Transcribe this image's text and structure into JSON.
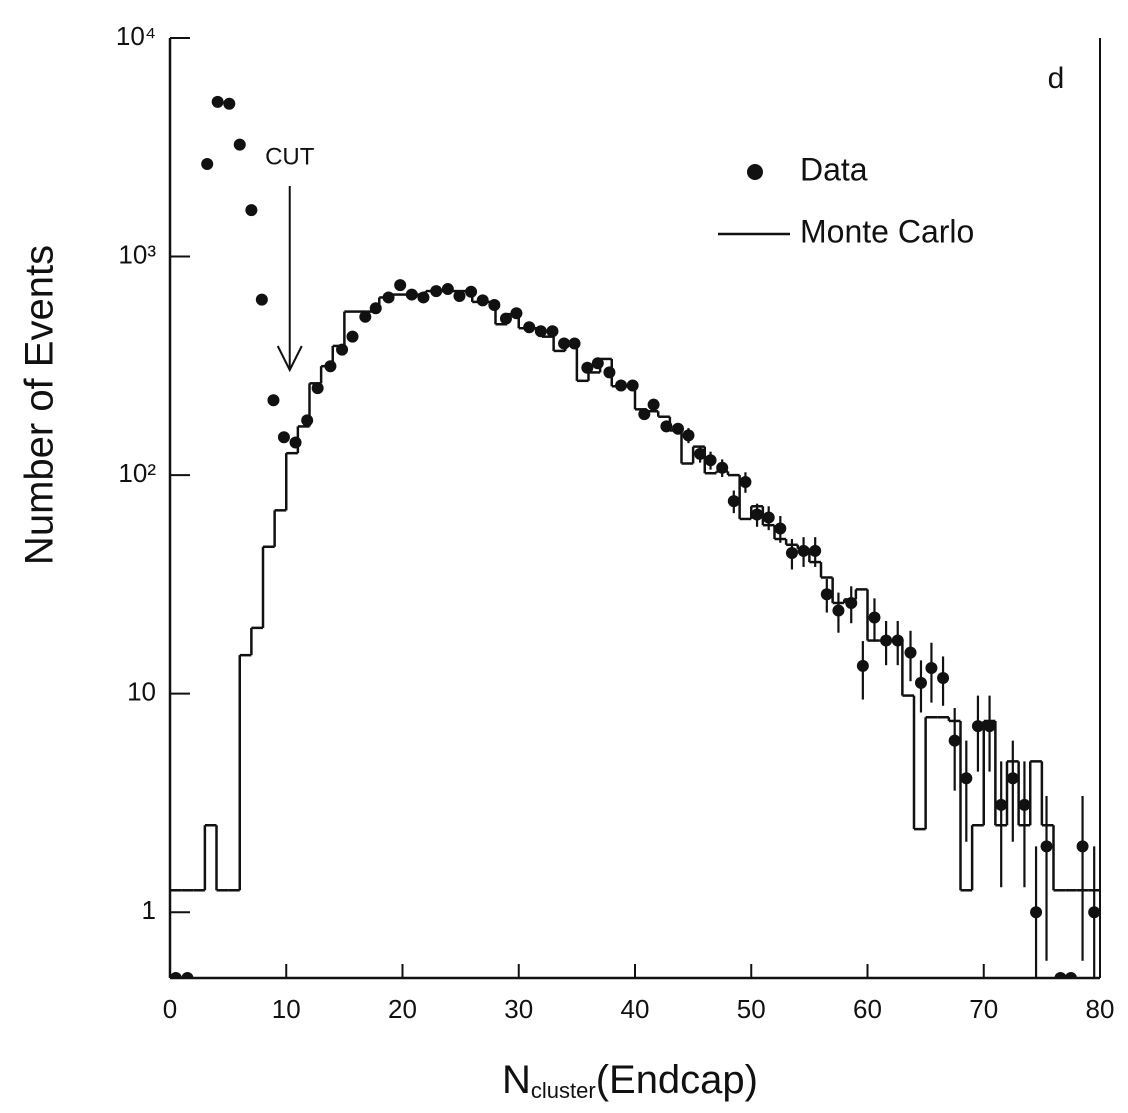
{
  "chart_data": {
    "type": "scatter",
    "y_label": "Number of Events",
    "x_label": {
      "main": "N",
      "subscript": "cluster",
      "suffix": "(Endcap)"
    },
    "xlim": [
      0,
      80
    ],
    "xticks": [
      0,
      10,
      20,
      30,
      40,
      50,
      60,
      70,
      80
    ],
    "ylim": [
      0.5,
      10000
    ],
    "yticks": [
      1,
      10,
      {
        "value": 100,
        "label": "10²"
      },
      {
        "value": 1000,
        "label": "10³"
      },
      {
        "value": 10000,
        "label": "10⁴"
      }
    ],
    "log_y": true,
    "grid": false,
    "legend": "upper right",
    "annotations": [
      {
        "text": "d"
      },
      {
        "text": "CUT",
        "x": 10.3
      }
    ],
    "series": [
      {
        "name": "Data",
        "type": "scatter",
        "color": "#111111",
        "x": [
          0.5,
          1.5,
          3.2,
          4.1,
          5.1,
          6.0,
          7.0,
          7.9,
          8.9,
          9.8,
          10.8,
          11.8,
          12.7,
          13.8,
          14.8,
          15.7,
          16.8,
          17.7,
          18.8,
          19.8,
          20.8,
          21.8,
          22.9,
          23.9,
          24.9,
          25.9,
          26.9,
          27.9,
          28.9,
          29.8,
          30.9,
          31.9,
          32.9,
          33.9,
          34.8,
          35.9,
          36.8,
          37.8,
          38.8,
          39.8,
          40.8,
          41.6,
          42.7,
          43.7,
          44.6,
          45.6,
          46.5,
          47.5,
          48.5,
          49.5,
          50.5,
          51.5,
          52.5,
          53.5,
          54.5,
          55.5,
          56.5,
          57.5,
          58.6,
          59.6,
          60.6,
          61.6,
          62.6,
          63.7,
          64.6,
          65.5,
          66.5,
          67.5,
          68.5,
          69.5,
          70.5,
          71.5,
          72.5,
          73.5,
          74.5,
          75.4,
          76.6,
          77.5,
          78.5,
          79.5
        ],
        "values": [
          0.5,
          0.5,
          2650,
          5100,
          5000,
          3250,
          1630,
          635,
          220,
          149,
          141,
          178,
          250,
          315,
          375,
          430,
          530,
          580,
          650,
          740,
          670,
          650,
          695,
          710,
          660,
          690,
          630,
          600,
          520,
          550,
          475,
          455,
          455,
          400,
          400,
          310,
          325,
          295,
          257,
          257,
          190,
          210,
          167,
          163,
          152,
          125,
          117,
          108,
          76,
          93,
          66,
          64,
          57,
          44,
          45,
          45,
          28.5,
          24,
          26,
          13.4,
          22.3,
          17.5,
          17.5,
          15.4,
          11.2,
          13.1,
          11.8,
          6.1,
          4.1,
          7.1,
          7.1,
          3.1,
          4.1,
          3.1,
          1.0,
          2.0,
          0.5,
          0.5,
          2.0,
          1.0
        ],
        "errors": [
          null,
          null,
          null,
          null,
          null,
          null,
          null,
          null,
          null,
          null,
          null,
          null,
          null,
          null,
          null,
          null,
          null,
          null,
          null,
          null,
          null,
          null,
          null,
          null,
          null,
          null,
          null,
          null,
          null,
          null,
          null,
          null,
          null,
          null,
          null,
          null,
          null,
          null,
          null,
          null,
          null,
          null,
          null,
          null,
          12,
          11,
          11,
          10,
          9,
          10,
          8,
          8,
          8,
          7,
          7,
          7,
          5,
          5,
          5,
          4,
          5,
          4,
          4,
          4,
          3,
          4,
          3,
          2.5,
          2,
          2.7,
          2.7,
          1.8,
          2,
          1.8,
          1,
          1.4,
          null,
          null,
          1.4,
          1
        ]
      },
      {
        "name": "Monte Carlo",
        "type": "histogram",
        "color": "#111111",
        "bins": [
          0,
          1,
          2,
          3,
          4,
          5,
          6,
          7,
          8,
          9,
          10,
          11,
          12,
          13,
          14,
          15,
          16,
          17,
          18,
          19,
          20,
          21,
          22,
          23,
          24,
          25,
          26,
          27,
          28,
          29,
          30,
          31,
          32,
          33,
          34,
          35,
          36,
          37,
          38,
          39,
          40,
          41,
          42,
          43,
          44,
          45,
          46,
          47,
          48,
          49,
          50,
          51,
          52,
          53,
          54,
          55,
          56,
          57,
          58,
          59,
          60,
          61,
          62,
          63,
          64,
          65,
          66,
          67,
          68,
          69,
          70,
          71,
          72,
          73,
          74,
          75,
          76,
          77,
          78,
          79,
          80
        ],
        "values": [
          1.26,
          1.26,
          1.26,
          2.5,
          1.26,
          1.26,
          15,
          20,
          47,
          69,
          126,
          167,
          263,
          315,
          390,
          560,
          560,
          560,
          650,
          670,
          670,
          670,
          695,
          695,
          695,
          695,
          620,
          620,
          490,
          545,
          470,
          470,
          430,
          370,
          400,
          270,
          295,
          340,
          255,
          255,
          200,
          196,
          185,
          160,
          113,
          135,
          102,
          104,
          100,
          63,
          72,
          59,
          51,
          48,
          46,
          40,
          34,
          26,
          27,
          30,
          17.5,
          17.5,
          17.5,
          9.8,
          2.4,
          7.8,
          7.8,
          7.5,
          1.26,
          2.5,
          7.5,
          2.5,
          4.9,
          2.5,
          4.9,
          2.5,
          1.26,
          1.26,
          1.26,
          1.26
        ]
      }
    ]
  }
}
